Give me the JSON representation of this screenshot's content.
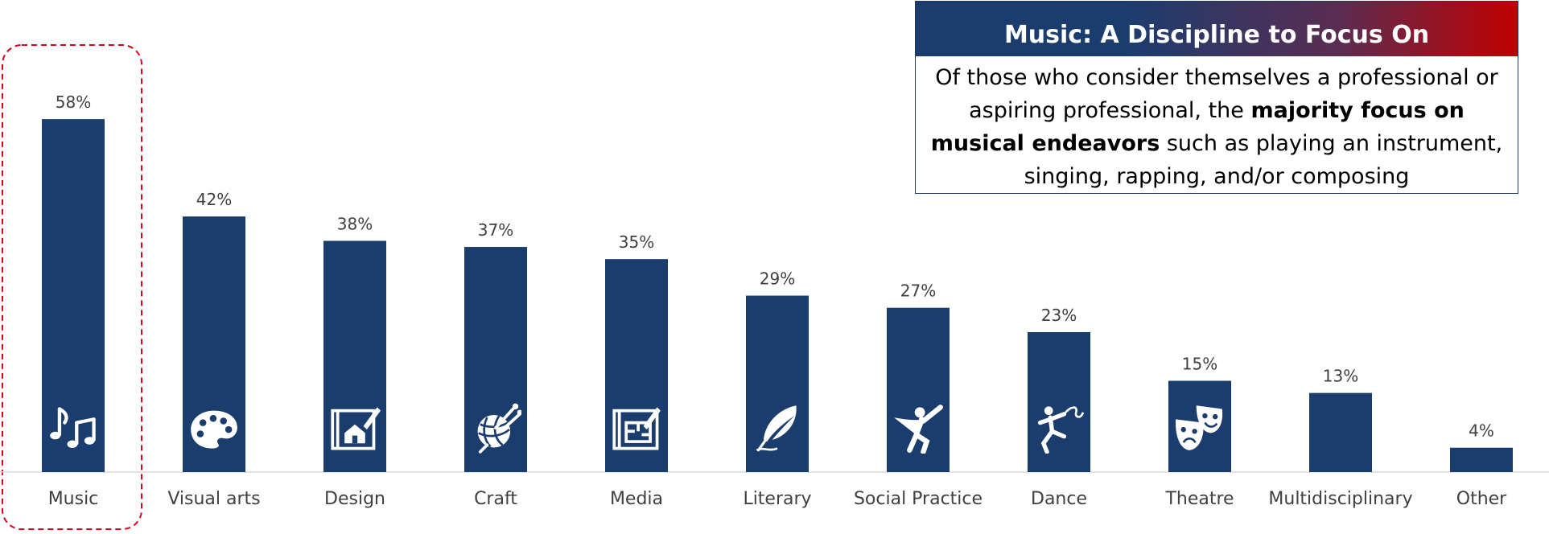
{
  "chart_data": {
    "type": "bar",
    "categories": [
      "Music",
      "Visual arts",
      "Design",
      "Craft",
      "Media",
      "Literary",
      "Social Practice",
      "Dance",
      "Theatre",
      "Multidisciplinary",
      "Other"
    ],
    "values": [
      58,
      42,
      38,
      37,
      35,
      29,
      27,
      23,
      15,
      13,
      4
    ],
    "value_labels": [
      "58%",
      "42%",
      "38%",
      "37%",
      "35%",
      "29%",
      "27%",
      "23%",
      "15%",
      "13%",
      "4%"
    ],
    "icons": [
      "music-notes-icon",
      "paint-palette-icon",
      "blueprint-house-icon",
      "yarn-ball-icon",
      "blueprint-pencil-icon",
      "feather-quill-icon",
      "superhero-icon",
      "dancer-ribbon-icon",
      "theatre-masks-icon",
      "",
      ""
    ],
    "highlighted_category": "Music",
    "unit": "%",
    "ylim": [
      0,
      60
    ],
    "grid": false,
    "legend": "none"
  },
  "colors": {
    "bar": "#1b3d6e",
    "highlight_border": "#d9001b",
    "axis": "#d9d9d9",
    "callout_gradient_start": "#1b3d6e",
    "callout_gradient_end": "#c00000"
  },
  "callout": {
    "title": "Music:  A Discipline to Focus On",
    "body_before": "Of those who consider themselves a professional or aspiring professional, the ",
    "body_bold": "majority focus on musical endeavors",
    "body_after": " such as playing an instrument, singing, rapping, and/or composing"
  }
}
